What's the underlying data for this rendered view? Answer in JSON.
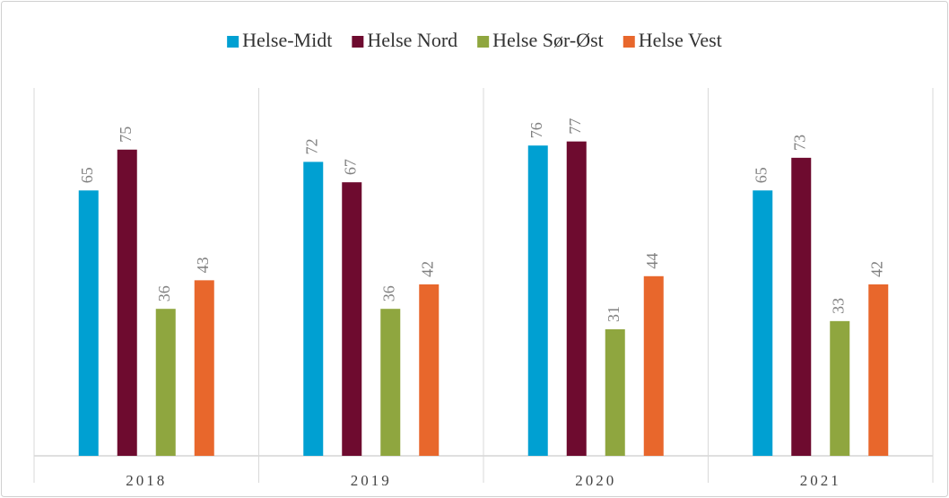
{
  "chart_data": {
    "type": "bar",
    "categories": [
      "2018",
      "2019",
      "2020",
      "2021"
    ],
    "series": [
      {
        "name": "Helse-Midt",
        "color": "#00a0d2",
        "values": [
          65,
          72,
          76,
          65
        ]
      },
      {
        "name": "Helse Nord",
        "color": "#6e0b2f",
        "values": [
          75,
          67,
          77,
          73
        ]
      },
      {
        "name": "Helse Sør-Øst",
        "color": "#8fa63f",
        "values": [
          36,
          36,
          31,
          33
        ]
      },
      {
        "name": "Helse Vest",
        "color": "#e8672c",
        "values": [
          43,
          42,
          44,
          42
        ]
      }
    ],
    "legend": "top"
  }
}
